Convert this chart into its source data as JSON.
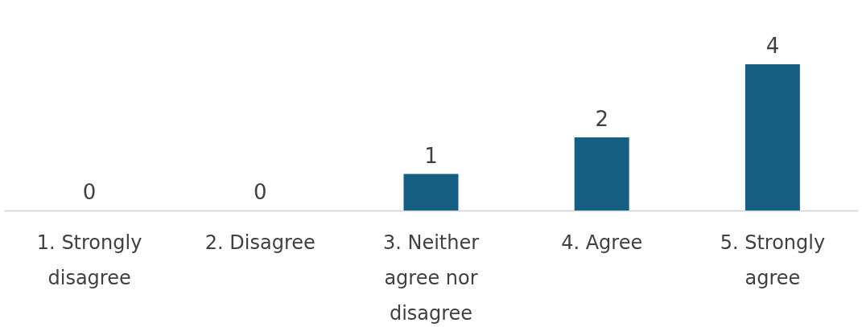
{
  "chart_data": {
    "type": "bar",
    "categories": [
      "1. Strongly disagree",
      "2. Disagree",
      "3. Neither agree nor disagree",
      "4. Agree",
      "5. Strongly agree"
    ],
    "values": [
      0,
      0,
      1,
      2,
      4
    ],
    "color": "#155f82",
    "data_labels": true
  }
}
